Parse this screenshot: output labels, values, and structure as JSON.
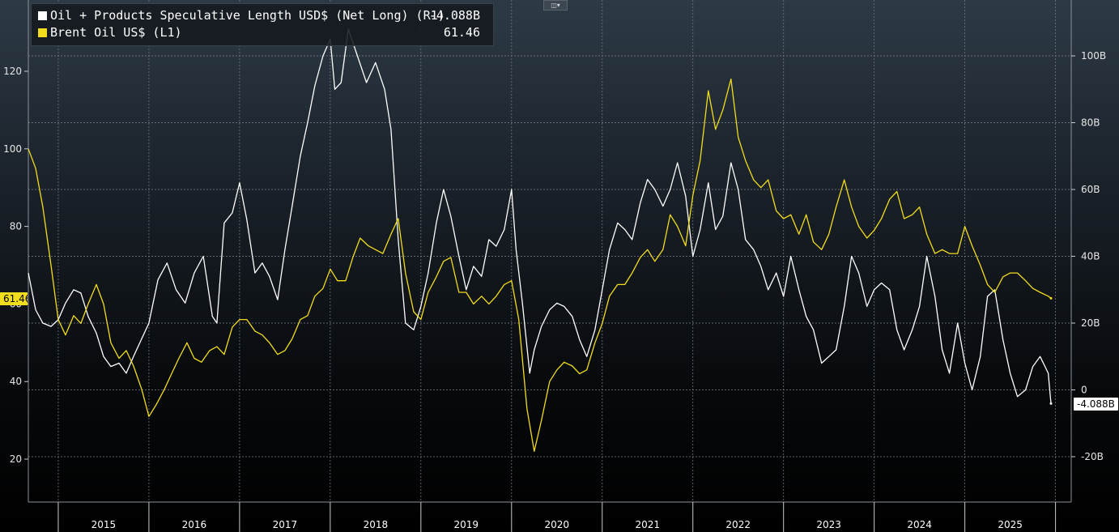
{
  "legend": {
    "series1_label": "Oil + Products Speculative Length USD$ (Net Long) (R1)",
    "series1_value": "-4.088B",
    "series1_color": "#ffffff",
    "series2_label": "Brent Oil US$ (L1)",
    "series2_value": "61.46",
    "series2_color": "#f2dd1c"
  },
  "toolbar": {
    "chart_type_icon": "line-chart-icon"
  },
  "axis_tags": {
    "left_last_value": "61.46",
    "right_last_value": "-4.088B"
  },
  "chart_data": {
    "type": "line",
    "title": "",
    "x_labels": [
      "2015",
      "2016",
      "2017",
      "2018",
      "2019",
      "2020",
      "2021",
      "2022",
      "2023",
      "2024",
      "2025"
    ],
    "x_range": [
      2014.67,
      2025.95
    ],
    "left_axis": {
      "ticks": [
        20,
        40,
        60,
        80,
        100,
        120
      ],
      "tick_labels": [
        "20",
        "40",
        "60",
        "80",
        "100",
        "120"
      ],
      "ylim": [
        10,
        130
      ]
    },
    "right_axis": {
      "ticks": [
        -20,
        0,
        20,
        40,
        60,
        80,
        100
      ],
      "tick_labels": [
        "-20B",
        "0",
        "20B",
        "40B",
        "60B",
        "80B",
        "100B"
      ],
      "ylim": [
        -30,
        110
      ],
      "unit": "B USD"
    },
    "grid": true,
    "legend_position": "top-left",
    "series": [
      {
        "name": "Oil + Products Speculative Length USD$ (Net Long) (R1)",
        "axis": "right",
        "color": "#ffffff",
        "points": [
          [
            2014.67,
            35
          ],
          [
            2014.75,
            24
          ],
          [
            2014.83,
            20
          ],
          [
            2014.92,
            19
          ],
          [
            2015.0,
            21
          ],
          [
            2015.08,
            26
          ],
          [
            2015.17,
            30
          ],
          [
            2015.25,
            29
          ],
          [
            2015.33,
            22
          ],
          [
            2015.42,
            17
          ],
          [
            2015.5,
            10
          ],
          [
            2015.58,
            7
          ],
          [
            2015.67,
            8
          ],
          [
            2015.75,
            5
          ],
          [
            2015.83,
            10
          ],
          [
            2016.0,
            20
          ],
          [
            2016.1,
            33
          ],
          [
            2016.2,
            38
          ],
          [
            2016.3,
            30
          ],
          [
            2016.4,
            26
          ],
          [
            2016.5,
            35
          ],
          [
            2016.6,
            40
          ],
          [
            2016.7,
            22
          ],
          [
            2016.75,
            20
          ],
          [
            2016.83,
            50
          ],
          [
            2016.92,
            53
          ],
          [
            2017.0,
            62
          ],
          [
            2017.08,
            51
          ],
          [
            2017.17,
            35
          ],
          [
            2017.25,
            38
          ],
          [
            2017.33,
            34
          ],
          [
            2017.42,
            27
          ],
          [
            2017.5,
            42
          ],
          [
            2017.58,
            55
          ],
          [
            2017.67,
            70
          ],
          [
            2017.75,
            80
          ],
          [
            2017.83,
            91
          ],
          [
            2017.92,
            100
          ],
          [
            2018.0,
            105
          ],
          [
            2018.05,
            90
          ],
          [
            2018.12,
            92
          ],
          [
            2018.2,
            108
          ],
          [
            2018.3,
            100
          ],
          [
            2018.4,
            92
          ],
          [
            2018.5,
            98
          ],
          [
            2018.6,
            90
          ],
          [
            2018.67,
            78
          ],
          [
            2018.75,
            45
          ],
          [
            2018.83,
            20
          ],
          [
            2018.92,
            18
          ],
          [
            2019.0,
            25
          ],
          [
            2019.08,
            35
          ],
          [
            2019.17,
            50
          ],
          [
            2019.25,
            60
          ],
          [
            2019.33,
            52
          ],
          [
            2019.42,
            40
          ],
          [
            2019.5,
            30
          ],
          [
            2019.58,
            37
          ],
          [
            2019.67,
            34
          ],
          [
            2019.75,
            45
          ],
          [
            2019.83,
            43
          ],
          [
            2019.92,
            48
          ],
          [
            2020.0,
            60
          ],
          [
            2020.05,
            42
          ],
          [
            2020.12,
            26
          ],
          [
            2020.2,
            5
          ],
          [
            2020.25,
            12
          ],
          [
            2020.33,
            19
          ],
          [
            2020.42,
            24
          ],
          [
            2020.5,
            26
          ],
          [
            2020.58,
            25
          ],
          [
            2020.67,
            22
          ],
          [
            2020.75,
            15
          ],
          [
            2020.83,
            10
          ],
          [
            2020.92,
            18
          ],
          [
            2021.0,
            30
          ],
          [
            2021.08,
            42
          ],
          [
            2021.17,
            50
          ],
          [
            2021.25,
            48
          ],
          [
            2021.33,
            45
          ],
          [
            2021.42,
            56
          ],
          [
            2021.5,
            63
          ],
          [
            2021.58,
            60
          ],
          [
            2021.67,
            55
          ],
          [
            2021.75,
            60
          ],
          [
            2021.83,
            68
          ],
          [
            2021.92,
            58
          ],
          [
            2022.0,
            40
          ],
          [
            2022.08,
            48
          ],
          [
            2022.17,
            62
          ],
          [
            2022.25,
            48
          ],
          [
            2022.33,
            52
          ],
          [
            2022.42,
            68
          ],
          [
            2022.5,
            60
          ],
          [
            2022.58,
            45
          ],
          [
            2022.67,
            42
          ],
          [
            2022.75,
            37
          ],
          [
            2022.83,
            30
          ],
          [
            2022.92,
            35
          ],
          [
            2023.0,
            28
          ],
          [
            2023.08,
            40
          ],
          [
            2023.17,
            30
          ],
          [
            2023.25,
            22
          ],
          [
            2023.33,
            18
          ],
          [
            2023.42,
            8
          ],
          [
            2023.5,
            10
          ],
          [
            2023.58,
            12
          ],
          [
            2023.67,
            25
          ],
          [
            2023.75,
            40
          ],
          [
            2023.83,
            35
          ],
          [
            2023.92,
            25
          ],
          [
            2024.0,
            30
          ],
          [
            2024.08,
            32
          ],
          [
            2024.17,
            30
          ],
          [
            2024.25,
            18
          ],
          [
            2024.33,
            12
          ],
          [
            2024.42,
            18
          ],
          [
            2024.5,
            25
          ],
          [
            2024.58,
            40
          ],
          [
            2024.67,
            28
          ],
          [
            2024.75,
            12
          ],
          [
            2024.83,
            5
          ],
          [
            2024.92,
            20
          ],
          [
            2025.0,
            8
          ],
          [
            2025.08,
            0
          ],
          [
            2025.17,
            10
          ],
          [
            2025.25,
            28
          ],
          [
            2025.33,
            30
          ],
          [
            2025.42,
            15
          ],
          [
            2025.5,
            5
          ],
          [
            2025.58,
            -2
          ],
          [
            2025.67,
            0
          ],
          [
            2025.75,
            7
          ],
          [
            2025.83,
            10
          ],
          [
            2025.92,
            5
          ],
          [
            2025.95,
            -4.088
          ]
        ]
      },
      {
        "name": "Brent Oil US$ (L1)",
        "axis": "left",
        "color": "#f2dd1c",
        "points": [
          [
            2014.67,
            100
          ],
          [
            2014.75,
            95
          ],
          [
            2014.83,
            85
          ],
          [
            2014.92,
            70
          ],
          [
            2015.0,
            56
          ],
          [
            2015.08,
            52
          ],
          [
            2015.17,
            57
          ],
          [
            2015.25,
            55
          ],
          [
            2015.33,
            60
          ],
          [
            2015.42,
            65
          ],
          [
            2015.5,
            60
          ],
          [
            2015.58,
            50
          ],
          [
            2015.67,
            46
          ],
          [
            2015.75,
            48
          ],
          [
            2015.83,
            44
          ],
          [
            2015.92,
            38
          ],
          [
            2016.0,
            31
          ],
          [
            2016.08,
            34
          ],
          [
            2016.17,
            38
          ],
          [
            2016.25,
            42
          ],
          [
            2016.33,
            46
          ],
          [
            2016.42,
            50
          ],
          [
            2016.5,
            46
          ],
          [
            2016.58,
            45
          ],
          [
            2016.67,
            48
          ],
          [
            2016.75,
            49
          ],
          [
            2016.83,
            47
          ],
          [
            2016.92,
            54
          ],
          [
            2017.0,
            56
          ],
          [
            2017.08,
            56
          ],
          [
            2017.17,
            53
          ],
          [
            2017.25,
            52
          ],
          [
            2017.33,
            50
          ],
          [
            2017.42,
            47
          ],
          [
            2017.5,
            48
          ],
          [
            2017.58,
            51
          ],
          [
            2017.67,
            56
          ],
          [
            2017.75,
            57
          ],
          [
            2017.83,
            62
          ],
          [
            2017.92,
            64
          ],
          [
            2018.0,
            69
          ],
          [
            2018.08,
            66
          ],
          [
            2018.17,
            66
          ],
          [
            2018.25,
            72
          ],
          [
            2018.33,
            77
          ],
          [
            2018.42,
            75
          ],
          [
            2018.5,
            74
          ],
          [
            2018.58,
            73
          ],
          [
            2018.67,
            78
          ],
          [
            2018.75,
            82
          ],
          [
            2018.83,
            68
          ],
          [
            2018.92,
            58
          ],
          [
            2019.0,
            56
          ],
          [
            2019.08,
            63
          ],
          [
            2019.17,
            67
          ],
          [
            2019.25,
            71
          ],
          [
            2019.33,
            72
          ],
          [
            2019.42,
            63
          ],
          [
            2019.5,
            63
          ],
          [
            2019.58,
            60
          ],
          [
            2019.67,
            62
          ],
          [
            2019.75,
            60
          ],
          [
            2019.83,
            62
          ],
          [
            2019.92,
            65
          ],
          [
            2020.0,
            66
          ],
          [
            2020.08,
            56
          ],
          [
            2020.17,
            33
          ],
          [
            2020.25,
            22
          ],
          [
            2020.33,
            30
          ],
          [
            2020.42,
            40
          ],
          [
            2020.5,
            43
          ],
          [
            2020.58,
            45
          ],
          [
            2020.67,
            44
          ],
          [
            2020.75,
            42
          ],
          [
            2020.83,
            43
          ],
          [
            2020.92,
            50
          ],
          [
            2021.0,
            55
          ],
          [
            2021.08,
            62
          ],
          [
            2021.17,
            65
          ],
          [
            2021.25,
            65
          ],
          [
            2021.33,
            68
          ],
          [
            2021.42,
            72
          ],
          [
            2021.5,
            74
          ],
          [
            2021.58,
            71
          ],
          [
            2021.67,
            74
          ],
          [
            2021.75,
            83
          ],
          [
            2021.83,
            80
          ],
          [
            2021.92,
            75
          ],
          [
            2022.0,
            88
          ],
          [
            2022.08,
            97
          ],
          [
            2022.17,
            115
          ],
          [
            2022.25,
            105
          ],
          [
            2022.33,
            110
          ],
          [
            2022.42,
            118
          ],
          [
            2022.5,
            103
          ],
          [
            2022.58,
            97
          ],
          [
            2022.67,
            92
          ],
          [
            2022.75,
            90
          ],
          [
            2022.83,
            92
          ],
          [
            2022.92,
            84
          ],
          [
            2023.0,
            82
          ],
          [
            2023.08,
            83
          ],
          [
            2023.17,
            78
          ],
          [
            2023.25,
            83
          ],
          [
            2023.33,
            76
          ],
          [
            2023.42,
            74
          ],
          [
            2023.5,
            78
          ],
          [
            2023.58,
            85
          ],
          [
            2023.67,
            92
          ],
          [
            2023.75,
            85
          ],
          [
            2023.83,
            80
          ],
          [
            2023.92,
            77
          ],
          [
            2024.0,
            79
          ],
          [
            2024.08,
            82
          ],
          [
            2024.17,
            87
          ],
          [
            2024.25,
            89
          ],
          [
            2024.33,
            82
          ],
          [
            2024.42,
            83
          ],
          [
            2024.5,
            85
          ],
          [
            2024.58,
            78
          ],
          [
            2024.67,
            73
          ],
          [
            2024.75,
            74
          ],
          [
            2024.83,
            73
          ],
          [
            2024.92,
            73
          ],
          [
            2025.0,
            80
          ],
          [
            2025.08,
            75
          ],
          [
            2025.17,
            70
          ],
          [
            2025.25,
            65
          ],
          [
            2025.33,
            63
          ],
          [
            2025.42,
            67
          ],
          [
            2025.5,
            68
          ],
          [
            2025.58,
            68
          ],
          [
            2025.67,
            66
          ],
          [
            2025.75,
            64
          ],
          [
            2025.83,
            63
          ],
          [
            2025.92,
            62
          ],
          [
            2025.95,
            61.46
          ]
        ]
      }
    ]
  }
}
